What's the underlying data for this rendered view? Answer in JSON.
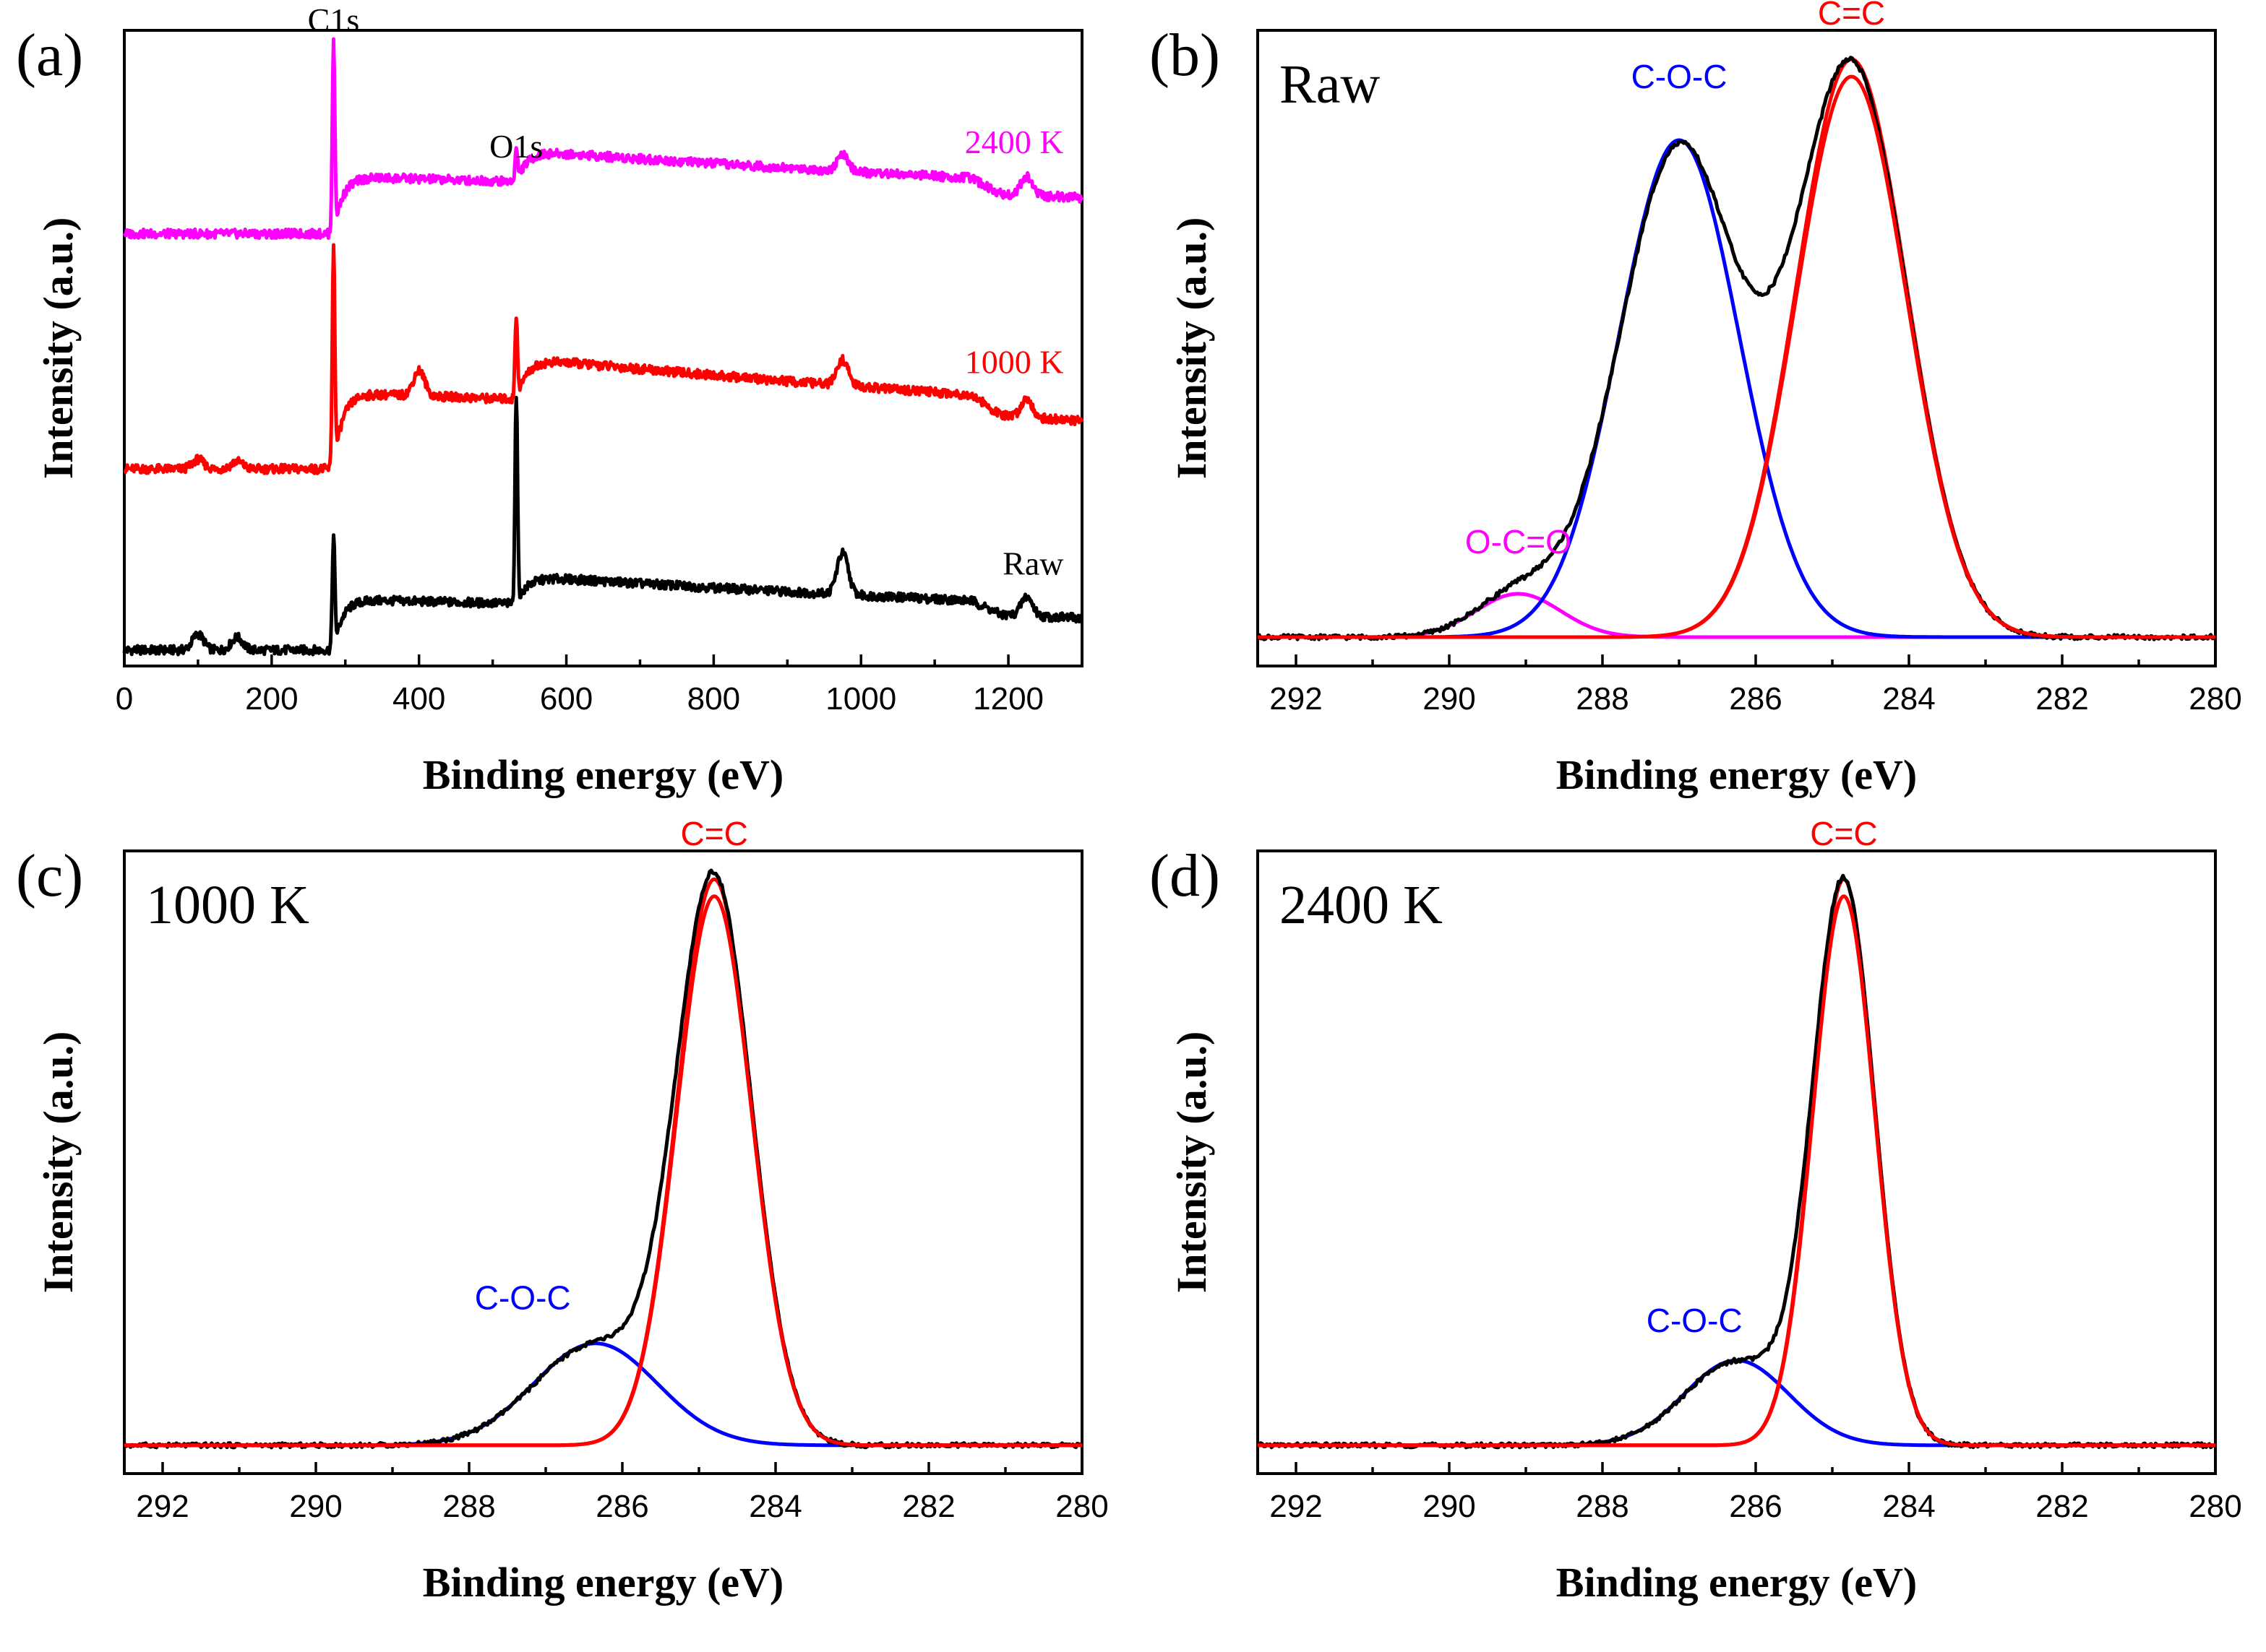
{
  "colors": {
    "raw": "#000000",
    "k1000": "#ff0000",
    "k2400": "#ff00ff",
    "coc": "#0000ff",
    "cc": "#ff0000",
    "oco": "#ff00ff",
    "envelope": "#000000"
  },
  "chart_data": [
    {
      "id": "a",
      "type": "line",
      "panel_label": "(a)",
      "xlabel": "Binding energy (eV)",
      "ylabel": "Intensity (a.u.)",
      "xlim": [
        0,
        1300
      ],
      "ylim": [
        0,
        100
      ],
      "xticks": [
        0,
        200,
        400,
        600,
        800,
        1000,
        1200
      ],
      "xtick_labels": [
        "0",
        "200",
        "400",
        "600",
        "800",
        "1000",
        "1200"
      ],
      "peak_labels": [
        {
          "text": "C1s",
          "x": 284
        },
        {
          "text": "O1s",
          "x": 532
        }
      ],
      "series": [
        {
          "name": "Raw",
          "label": "Raw",
          "color_key": "raw",
          "baseline": 2.5,
          "c1s": 18,
          "o1s": 33,
          "plateau": 8,
          "minor_peaks": [
            [
              100,
              2.5
            ],
            [
              153,
              2.0
            ],
            [
              975,
              6.5
            ],
            [
              1225,
              3.0
            ]
          ]
        },
        {
          "name": "1000 K",
          "label": "1000 K",
          "color_key": "k1000",
          "baseline": 31,
          "c1s": 35,
          "o1s": 13,
          "plateau": 12,
          "minor_peaks": [
            [
              100,
              1.5
            ],
            [
              153,
              1.2
            ],
            [
              400,
              4.0
            ],
            [
              975,
              4.0
            ],
            [
              1225,
              3.0
            ]
          ]
        },
        {
          "name": "2400 K",
          "label": "2400 K",
          "color_key": "k2400",
          "baseline": 68,
          "c1s": 30,
          "o1s": 5,
          "plateau": 9,
          "minor_peaks": [
            [
              975,
              2.5
            ],
            [
              1225,
              3.0
            ]
          ]
        }
      ]
    },
    {
      "id": "b",
      "type": "line",
      "panel_label": "(b)",
      "title": "Raw",
      "xlabel": "Binding energy (eV)",
      "ylabel": "Intensity (a.u.)",
      "xlim": [
        292.5,
        280
      ],
      "ylim": [
        -0.05,
        1.05
      ],
      "xticks": [
        292,
        290,
        288,
        286,
        284,
        282,
        280
      ],
      "xtick_labels": [
        "292",
        "290",
        "288",
        "286",
        "284",
        "282",
        "280"
      ],
      "components": [
        {
          "name": "O-C=O",
          "label": "O-C=O",
          "center": 289.1,
          "height": 0.075,
          "fwhm": 1.3,
          "color_key": "oco",
          "label_x": 289.1,
          "label_y": 0.145
        },
        {
          "name": "C-O-C",
          "label": "C-O-C",
          "center": 287.0,
          "height": 0.86,
          "fwhm": 1.85,
          "color_key": "coc",
          "label_x": 287.0,
          "label_y": 0.95
        },
        {
          "name": "C=C",
          "label": "C=C",
          "center": 284.75,
          "height": 1.0,
          "fwhm": 1.7,
          "color_key": "cc",
          "label_x": 284.75,
          "label_y": 1.06
        }
      ]
    },
    {
      "id": "c",
      "type": "line",
      "panel_label": "(c)",
      "title": "1000 K",
      "xlabel": "Binding energy (eV)",
      "ylabel": "Intensity (a.u.)",
      "xlim": [
        292.5,
        280
      ],
      "ylim": [
        -0.05,
        1.05
      ],
      "xticks": [
        292,
        290,
        288,
        286,
        284,
        282,
        280
      ],
      "xtick_labels": [
        "292",
        "290",
        "288",
        "286",
        "284",
        "282",
        "280"
      ],
      "components": [
        {
          "name": "C-O-C",
          "label": "C-O-C",
          "center": 286.35,
          "height": 0.18,
          "fwhm": 1.9,
          "color_key": "coc",
          "label_x": 287.3,
          "label_y": 0.24
        },
        {
          "name": "C=C",
          "label": "C=C",
          "center": 284.8,
          "height": 1.0,
          "fwhm": 1.15,
          "color_key": "cc",
          "label_x": 284.8,
          "label_y": 1.06
        }
      ]
    },
    {
      "id": "d",
      "type": "line",
      "panel_label": "(d)",
      "title": "2400 K",
      "xlabel": "Binding energy (eV)",
      "ylabel": "Intensity (a.u.)",
      "xlim": [
        292.5,
        280
      ],
      "ylim": [
        -0.05,
        1.05
      ],
      "xticks": [
        292,
        290,
        288,
        286,
        284,
        282,
        280
      ],
      "xtick_labels": [
        "292",
        "290",
        "288",
        "286",
        "284",
        "282",
        "280"
      ],
      "components": [
        {
          "name": "C-O-C",
          "label": "C-O-C",
          "center": 286.25,
          "height": 0.15,
          "fwhm": 1.6,
          "color_key": "coc",
          "label_x": 286.8,
          "label_y": 0.2
        },
        {
          "name": "C=C",
          "label": "C=C",
          "center": 284.85,
          "height": 1.0,
          "fwhm": 0.95,
          "color_key": "cc",
          "label_x": 284.85,
          "label_y": 1.06
        }
      ]
    }
  ]
}
